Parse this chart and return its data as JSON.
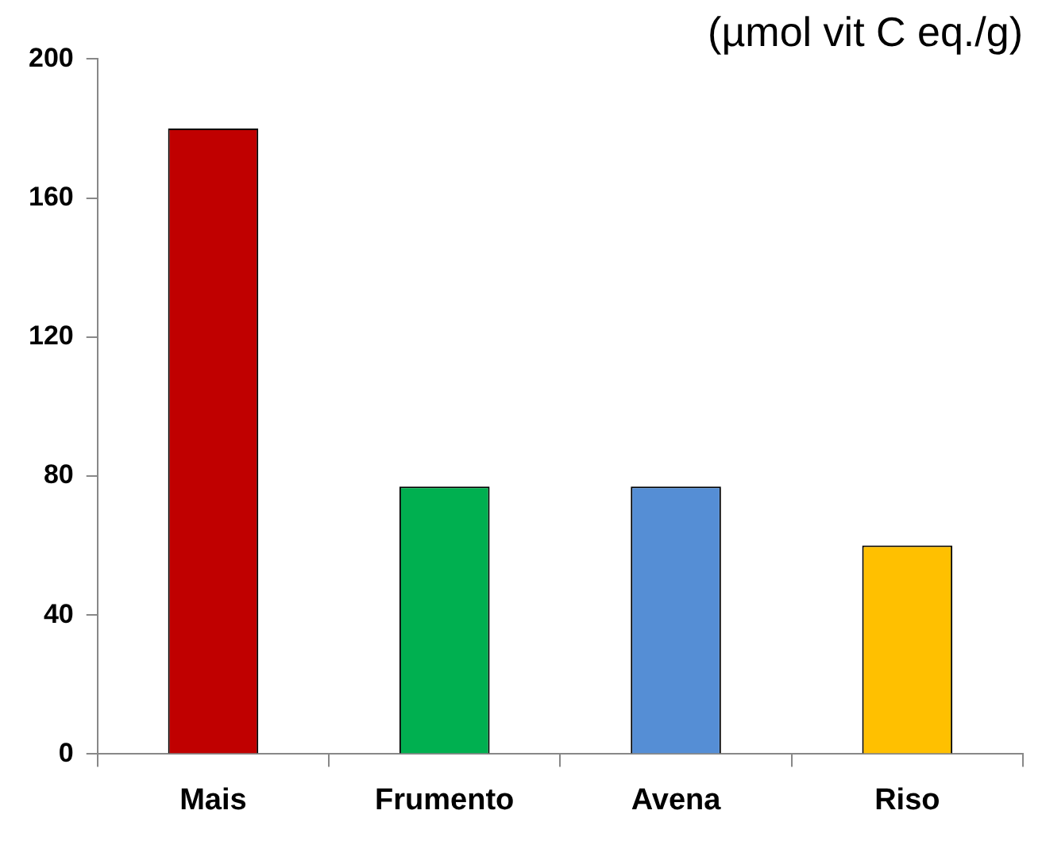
{
  "chart_data": {
    "type": "bar",
    "title": "(µmol vit C eq./g)",
    "categories": [
      "Mais",
      "Frumento",
      "Avena",
      "Riso"
    ],
    "values": [
      180,
      77,
      77,
      60
    ],
    "colors": [
      "#c00000",
      "#00b050",
      "#558ed5",
      "#ffc000"
    ],
    "ylim": [
      0,
      200
    ],
    "yticks": [
      0,
      40,
      80,
      120,
      160,
      200
    ],
    "grid": false,
    "legend": false
  }
}
